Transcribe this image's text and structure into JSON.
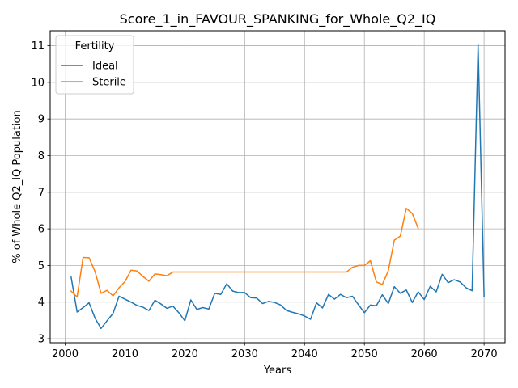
{
  "chart_data": {
    "type": "line",
    "title": "Score_1_in_FAVOUR_SPANKING_for_Whole_Q2_IQ",
    "xlabel": "Years",
    "ylabel": "% of Whole Q2_IQ Population",
    "xlim": [
      1997.5,
      2073.5
    ],
    "ylim": [
      2.89,
      11.41
    ],
    "xticks": [
      2000,
      2010,
      2020,
      2030,
      2040,
      2050,
      2060,
      2070
    ],
    "yticks": [
      3,
      4,
      5,
      6,
      7,
      8,
      9,
      10,
      11
    ],
    "grid": true,
    "legend": {
      "title": "Fertility",
      "position": "top-left"
    },
    "series": [
      {
        "name": "Ideal",
        "color": "#1f77b4",
        "x": [
          2001,
          2002,
          2003,
          2004,
          2005,
          2006,
          2007,
          2008,
          2009,
          2010,
          2011,
          2012,
          2013,
          2014,
          2015,
          2016,
          2017,
          2018,
          2019,
          2020,
          2021,
          2022,
          2023,
          2024,
          2025,
          2026,
          2027,
          2028,
          2029,
          2030,
          2031,
          2032,
          2033,
          2034,
          2035,
          2036,
          2037,
          2038,
          2039,
          2040,
          2041,
          2042,
          2043,
          2044,
          2045,
          2046,
          2047,
          2048,
          2049,
          2050,
          2051,
          2052,
          2053,
          2054,
          2055,
          2056,
          2057,
          2058,
          2059,
          2060,
          2061,
          2062,
          2063,
          2064,
          2065,
          2066,
          2067,
          2068,
          2069,
          2070
        ],
        "y": [
          4.68,
          3.73,
          3.85,
          3.98,
          3.56,
          3.28,
          3.49,
          3.69,
          4.16,
          4.08,
          4.0,
          3.91,
          3.86,
          3.77,
          4.05,
          3.95,
          3.83,
          3.89,
          3.71,
          3.49,
          4.06,
          3.8,
          3.85,
          3.81,
          4.24,
          4.21,
          4.5,
          4.3,
          4.26,
          4.26,
          4.12,
          4.11,
          3.96,
          4.02,
          3.99,
          3.92,
          3.77,
          3.72,
          3.68,
          3.62,
          3.53,
          3.98,
          3.84,
          4.21,
          4.08,
          4.21,
          4.12,
          4.16,
          3.93,
          3.71,
          3.92,
          3.9,
          4.2,
          3.96,
          4.42,
          4.24,
          4.33,
          3.99,
          4.28,
          4.07,
          4.43,
          4.28,
          4.76,
          4.53,
          4.61,
          4.55,
          4.39,
          4.31,
          11.02,
          4.15
        ]
      },
      {
        "name": "Sterile",
        "color": "#ff7f0e",
        "x": [
          2001,
          2002,
          2003,
          2004,
          2005,
          2006,
          2007,
          2008,
          2009,
          2010,
          2011,
          2012,
          2013,
          2014,
          2015,
          2016,
          2017,
          2018,
          2019,
          2020,
          2021,
          2022,
          2023,
          2024,
          2025,
          2026,
          2027,
          2028,
          2029,
          2030,
          2031,
          2032,
          2033,
          2034,
          2035,
          2036,
          2037,
          2038,
          2039,
          2040,
          2041,
          2042,
          2043,
          2044,
          2045,
          2046,
          2047,
          2048,
          2049,
          2050,
          2051,
          2052,
          2053,
          2054,
          2055,
          2056,
          2057,
          2058,
          2059
        ],
        "y": [
          4.3,
          4.14,
          5.22,
          5.21,
          4.83,
          4.24,
          4.32,
          4.17,
          4.39,
          4.56,
          4.87,
          4.85,
          4.7,
          4.57,
          4.77,
          4.75,
          4.72,
          4.82,
          4.82,
          4.82,
          4.82,
          4.82,
          4.82,
          4.82,
          4.82,
          4.82,
          4.82,
          4.82,
          4.82,
          4.82,
          4.82,
          4.82,
          4.82,
          4.82,
          4.82,
          4.82,
          4.82,
          4.82,
          4.82,
          4.82,
          4.82,
          4.82,
          4.82,
          4.82,
          4.82,
          4.82,
          4.82,
          4.95,
          5.0,
          5.0,
          5.13,
          4.55,
          4.48,
          4.86,
          5.69,
          5.8,
          6.56,
          6.42,
          6.01
        ]
      }
    ]
  }
}
